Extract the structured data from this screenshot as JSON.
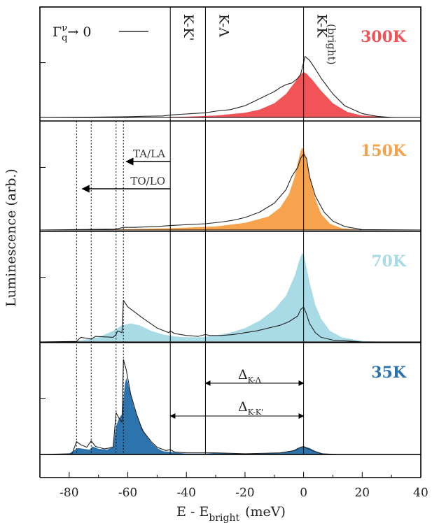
{
  "chart_data": {
    "type": "area",
    "xlabel": "E - E",
    "xlabel_sub": "bright",
    "xlabel_unit": "(meV)",
    "ylabel": "Luminescence (arb.)",
    "xlim": [
      -90,
      40
    ],
    "xticks": [
      -80,
      -60,
      -40,
      -20,
      0,
      20,
      40
    ],
    "xtick_labels": [
      "-80",
      "-60",
      "-40",
      "-20",
      "0",
      "20",
      "40"
    ],
    "legend": {
      "line_label": "Γ",
      "line_label_sup": "ν",
      "line_label_sub": "q",
      "line_label_tail": "→ 0"
    },
    "vertical_markers": [
      {
        "x": -45.5,
        "label": "K-K'",
        "style": "solid"
      },
      {
        "x": -33.5,
        "label": "K-Λ",
        "style": "solid"
      },
      {
        "x": 0,
        "label": "K-K",
        "sublabel": "(bright)",
        "style": "solid"
      }
    ],
    "dotted_markers": [
      -77.5,
      -72.5,
      -64,
      -61.5
    ],
    "annotations": {
      "ta_la": "TA/LA",
      "to_lo": "TO/LO",
      "delta": "Δ",
      "delta_kl_sub": "K-Λ",
      "delta_kk_sub": "K-K'"
    },
    "panels": [
      {
        "temperature": "300K",
        "color": "#f05457",
        "filled": [
          [
            -90,
            0
          ],
          [
            -50,
            0.004
          ],
          [
            -40,
            0.01
          ],
          [
            -30,
            0.025
          ],
          [
            -20,
            0.06
          ],
          [
            -15,
            0.1
          ],
          [
            -10,
            0.18
          ],
          [
            -6,
            0.3
          ],
          [
            -3,
            0.45
          ],
          [
            -1,
            0.55
          ],
          [
            0,
            0.58
          ],
          [
            1,
            0.56
          ],
          [
            3,
            0.48
          ],
          [
            6,
            0.34
          ],
          [
            10,
            0.18
          ],
          [
            15,
            0.07
          ],
          [
            20,
            0.025
          ],
          [
            30,
            0.005
          ],
          [
            40,
            0
          ]
        ],
        "line": [
          [
            -90,
            0
          ],
          [
            -70,
            0.005
          ],
          [
            -60,
            0.01
          ],
          [
            -55,
            0.015
          ],
          [
            -48,
            0.02
          ],
          [
            -45.5,
            0.03
          ],
          [
            -42,
            0.04
          ],
          [
            -38,
            0.05
          ],
          [
            -33.5,
            0.06
          ],
          [
            -30,
            0.08
          ],
          [
            -25,
            0.1
          ],
          [
            -20,
            0.15
          ],
          [
            -15,
            0.24
          ],
          [
            -10,
            0.33
          ],
          [
            -8,
            0.38
          ],
          [
            -6,
            0.42
          ],
          [
            -4,
            0.44
          ],
          [
            -2,
            0.5
          ],
          [
            -1,
            0.55
          ],
          [
            0,
            0.7
          ],
          [
            0.5,
            0.78
          ],
          [
            2,
            0.73
          ],
          [
            4,
            0.62
          ],
          [
            6,
            0.5
          ],
          [
            10,
            0.3
          ],
          [
            14,
            0.15
          ],
          [
            20,
            0.05
          ],
          [
            25,
            0.015
          ],
          [
            30,
            0
          ],
          [
            40,
            0
          ]
        ]
      },
      {
        "temperature": "150K",
        "color": "#f7a34d",
        "filled": [
          [
            -90,
            0
          ],
          [
            -60,
            0.01
          ],
          [
            -45,
            0.02
          ],
          [
            -30,
            0.04
          ],
          [
            -20,
            0.08
          ],
          [
            -12,
            0.15
          ],
          [
            -8,
            0.25
          ],
          [
            -5,
            0.4
          ],
          [
            -3,
            0.6
          ],
          [
            -2,
            0.75
          ],
          [
            -1,
            0.88
          ],
          [
            -0.5,
            0.92
          ],
          [
            0,
            0.9
          ],
          [
            0.5,
            0.85
          ],
          [
            2,
            0.6
          ],
          [
            4,
            0.35
          ],
          [
            6,
            0.18
          ],
          [
            9,
            0.07
          ],
          [
            13,
            0.02
          ],
          [
            20,
            0
          ],
          [
            40,
            0
          ]
        ],
        "line": [
          [
            -90,
            0
          ],
          [
            -64,
            0.01
          ],
          [
            -61.5,
            0.03
          ],
          [
            -58,
            0.03
          ],
          [
            -50,
            0.04
          ],
          [
            -45.5,
            0.05
          ],
          [
            -40,
            0.06
          ],
          [
            -33.5,
            0.07
          ],
          [
            -28,
            0.09
          ],
          [
            -24,
            0.11
          ],
          [
            -20,
            0.14
          ],
          [
            -15,
            0.2
          ],
          [
            -10,
            0.3
          ],
          [
            -6,
            0.45
          ],
          [
            -4,
            0.6
          ],
          [
            -2,
            0.7
          ],
          [
            -1,
            0.8
          ],
          [
            0,
            0.85
          ],
          [
            1,
            0.8
          ],
          [
            2,
            0.6
          ],
          [
            4,
            0.38
          ],
          [
            7,
            0.2
          ],
          [
            10,
            0.1
          ],
          [
            14,
            0.04
          ],
          [
            20,
            0.005
          ],
          [
            40,
            0
          ]
        ]
      },
      {
        "temperature": "70K",
        "color": "#a8dbe6",
        "filled": [
          [
            -90,
            0
          ],
          [
            -77,
            0.01
          ],
          [
            -70,
            0.05
          ],
          [
            -65,
            0.12
          ],
          [
            -62,
            0.18
          ],
          [
            -59,
            0.2
          ],
          [
            -56,
            0.18
          ],
          [
            -52,
            0.12
          ],
          [
            -48,
            0.08
          ],
          [
            -44,
            0.06
          ],
          [
            -40,
            0.05
          ],
          [
            -35,
            0.05
          ],
          [
            -30,
            0.07
          ],
          [
            -25,
            0.1
          ],
          [
            -20,
            0.15
          ],
          [
            -15,
            0.23
          ],
          [
            -10,
            0.35
          ],
          [
            -6,
            0.5
          ],
          [
            -3,
            0.72
          ],
          [
            -1.5,
            0.88
          ],
          [
            -0.5,
            0.96
          ],
          [
            0,
            0.95
          ],
          [
            0.5,
            0.88
          ],
          [
            2,
            0.65
          ],
          [
            4,
            0.4
          ],
          [
            6,
            0.25
          ],
          [
            9,
            0.12
          ],
          [
            13,
            0.05
          ],
          [
            20,
            0.01
          ],
          [
            30,
            0
          ],
          [
            40,
            0
          ]
        ],
        "line": [
          [
            -90,
            0
          ],
          [
            -77.5,
            0.005
          ],
          [
            -76,
            0.05
          ],
          [
            -72.5,
            0.03
          ],
          [
            -71,
            0.06
          ],
          [
            -65,
            0.05
          ],
          [
            -64,
            0.08
          ],
          [
            -63.5,
            0.12
          ],
          [
            -62,
            0.1
          ],
          [
            -61.5,
            0.45
          ],
          [
            -60,
            0.38
          ],
          [
            -55,
            0.26
          ],
          [
            -50,
            0.15
          ],
          [
            -46,
            0.1
          ],
          [
            -45.5,
            0.12
          ],
          [
            -44,
            0.09
          ],
          [
            -40,
            0.07
          ],
          [
            -36,
            0.06
          ],
          [
            -33.5,
            0.08
          ],
          [
            -32,
            0.07
          ],
          [
            -28,
            0.07
          ],
          [
            -24,
            0.08
          ],
          [
            -20,
            0.1
          ],
          [
            -16,
            0.12
          ],
          [
            -12,
            0.15
          ],
          [
            -8,
            0.18
          ],
          [
            -5,
            0.22
          ],
          [
            -2,
            0.28
          ],
          [
            -1,
            0.35
          ],
          [
            0,
            0.38
          ],
          [
            1,
            0.3
          ],
          [
            2,
            0.2
          ],
          [
            4,
            0.1
          ],
          [
            6,
            0.05
          ],
          [
            10,
            0.02
          ],
          [
            20,
            0
          ],
          [
            40,
            0
          ]
        ]
      },
      {
        "temperature": "35K",
        "color": "#2d73ad",
        "filled": [
          [
            -90,
            0
          ],
          [
            -80,
            0.01
          ],
          [
            -78,
            0.06
          ],
          [
            -77,
            0.08
          ],
          [
            -75,
            0.07
          ],
          [
            -73,
            0.06
          ],
          [
            -72,
            0.1
          ],
          [
            -70,
            0.07
          ],
          [
            -67,
            0.06
          ],
          [
            -65,
            0.1
          ],
          [
            -64,
            0.35
          ],
          [
            -63,
            0.45
          ],
          [
            -62,
            0.5
          ],
          [
            -61,
            0.88
          ],
          [
            -60.5,
            0.95
          ],
          [
            -60,
            0.9
          ],
          [
            -58,
            0.6
          ],
          [
            -56,
            0.4
          ],
          [
            -54,
            0.25
          ],
          [
            -52,
            0.15
          ],
          [
            -50,
            0.08
          ],
          [
            -48,
            0.04
          ],
          [
            -45,
            0.03
          ],
          [
            -40,
            0.01
          ],
          [
            -33,
            0.01
          ],
          [
            -30,
            0.02
          ],
          [
            -25,
            0.01
          ],
          [
            -15,
            0.01
          ],
          [
            -8,
            0.02
          ],
          [
            -4,
            0.04
          ],
          [
            -2,
            0.08
          ],
          [
            0,
            0.1
          ],
          [
            2,
            0.08
          ],
          [
            4,
            0.04
          ],
          [
            7,
            0.01
          ],
          [
            12,
            0
          ],
          [
            40,
            0
          ]
        ],
        "line": [
          [
            -90,
            0
          ],
          [
            -79,
            0.01
          ],
          [
            -77.5,
            0.16
          ],
          [
            -76,
            0.12
          ],
          [
            -74,
            0.09
          ],
          [
            -72.5,
            0.17
          ],
          [
            -71,
            0.1
          ],
          [
            -68,
            0.07
          ],
          [
            -65,
            0.09
          ],
          [
            -64,
            0.52
          ],
          [
            -63,
            0.45
          ],
          [
            -62,
            0.4
          ],
          [
            -61.5,
            1.18
          ],
          [
            -60.5,
            1.05
          ],
          [
            -59,
            0.75
          ],
          [
            -57,
            0.5
          ],
          [
            -55,
            0.3
          ],
          [
            -52,
            0.16
          ],
          [
            -50,
            0.09
          ],
          [
            -47,
            0.05
          ],
          [
            -45.5,
            0.06
          ],
          [
            -44,
            0.03
          ],
          [
            -40,
            0.02
          ],
          [
            -35,
            0.02
          ],
          [
            -30,
            0.02
          ],
          [
            -20,
            0.01
          ],
          [
            -8,
            0.02
          ],
          [
            -3,
            0.05
          ],
          [
            -1,
            0.09
          ],
          [
            0,
            0.1
          ],
          [
            1,
            0.08
          ],
          [
            3,
            0.05
          ],
          [
            6,
            0.01
          ],
          [
            12,
            0
          ],
          [
            40,
            0
          ]
        ]
      }
    ]
  }
}
